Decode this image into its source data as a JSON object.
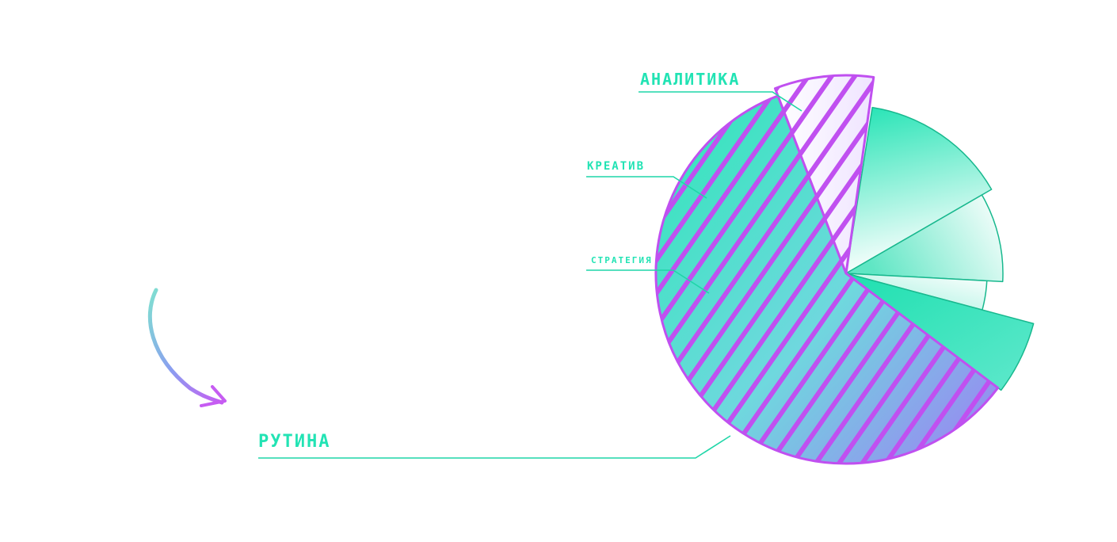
{
  "chart_data": {
    "type": "pie",
    "title": "",
    "categories": [
      "аналитика",
      "креатив",
      "стратегия",
      "рутина"
    ],
    "labels": [
      {
        "text": "аналитика",
        "emphasis": "large"
      },
      {
        "text": "креатив",
        "emphasis": "small"
      },
      {
        "text": "стратегия",
        "emphasis": "small"
      },
      {
        "text": "рутина",
        "emphasis": "large"
      }
    ],
    "slices": [
      {
        "name": "аналитика",
        "start_deg": -81,
        "end_deg": -30,
        "explode": 1.0,
        "fill": "teal-gradient"
      },
      {
        "name": "креатив",
        "start_deg": -30,
        "end_deg": 3,
        "explode": 0.98,
        "fill": "white-gradient"
      },
      {
        "name": "стратегия",
        "start_deg": 3,
        "end_deg": 15,
        "explode": 0.93,
        "fill": "white-gradient"
      },
      {
        "name": "рутина-teal",
        "start_deg": 15,
        "end_deg": 37,
        "explode": 1.0,
        "fill": "teal-gradient"
      },
      {
        "name": "рутина-hatched",
        "start_deg": 37,
        "end_deg": 249,
        "explode": 1.0,
        "fill": "hatch"
      },
      {
        "name": "рутина-sliver",
        "start_deg": 249,
        "end_deg": 278,
        "explode": 1.04,
        "fill": "hatch"
      }
    ]
  },
  "colors": {
    "teal": "#22E3B4",
    "teal_dark": "#16C79B",
    "purple": "#C050F0",
    "purple_light": "#9B7CF5",
    "line": "#1FD6A8"
  }
}
